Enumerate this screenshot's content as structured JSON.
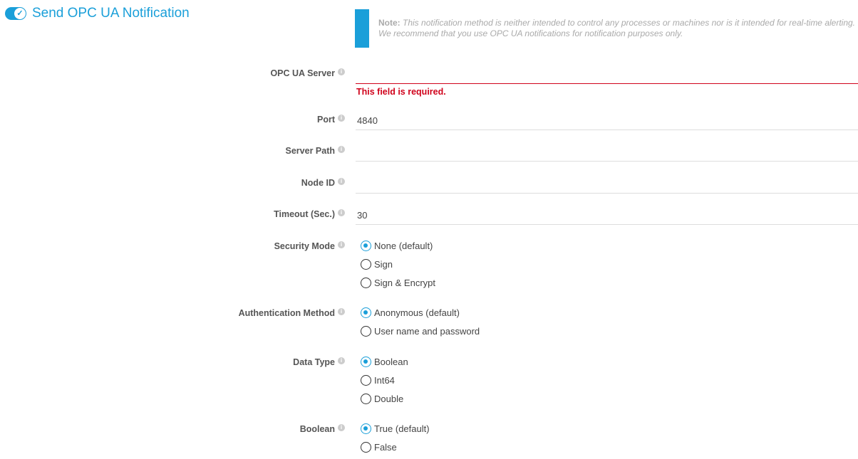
{
  "header": {
    "title": "Send OPC UA Notification",
    "enabled": true
  },
  "note": {
    "prefix": "Note:",
    "text": "This notification method is neither intended to control any processes or machines nor is it intended for real-time alerting. We recommend that you use OPC UA notifications for notification purposes only."
  },
  "fields": {
    "server": {
      "label": "OPC UA Server",
      "value": "",
      "error": "This field is required."
    },
    "port": {
      "label": "Port",
      "value": "4840"
    },
    "path": {
      "label": "Server Path",
      "value": ""
    },
    "node": {
      "label": "Node ID",
      "value": ""
    },
    "timeout": {
      "label": "Timeout (Sec.)",
      "value": "30"
    }
  },
  "security": {
    "label": "Security Mode",
    "options": [
      "None (default)",
      "Sign",
      "Sign & Encrypt"
    ],
    "selected": "None (default)"
  },
  "auth": {
    "label": "Authentication Method",
    "options": [
      "Anonymous (default)",
      "User name and password"
    ],
    "selected": "Anonymous (default)"
  },
  "datatype": {
    "label": "Data Type",
    "options": [
      "Boolean",
      "Int64",
      "Double"
    ],
    "selected": "Boolean"
  },
  "boolean": {
    "label": "Boolean",
    "options": [
      "True (default)",
      "False"
    ],
    "selected": "True (default)"
  },
  "colors": {
    "accent": "#1a9fd9",
    "error": "#d0021b"
  }
}
